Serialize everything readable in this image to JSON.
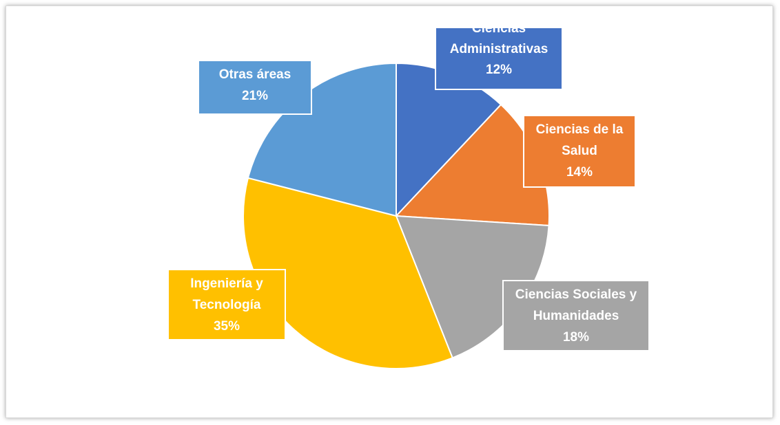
{
  "chart_data": {
    "type": "pie",
    "title": "",
    "start_angle_deg": 0,
    "direction": "clockwise",
    "slices": [
      {
        "label_lines": [
          "Ciencias",
          "Administrativas"
        ],
        "value": 12,
        "value_label": "12%",
        "color": "#4472c4"
      },
      {
        "label_lines": [
          "Ciencias de la",
          "Salud"
        ],
        "value": 14,
        "value_label": "14%",
        "color": "#ed7d31"
      },
      {
        "label_lines": [
          "Ciencias Sociales y",
          "Humanidades"
        ],
        "value": 18,
        "value_label": "18%",
        "color": "#a5a5a5"
      },
      {
        "label_lines": [
          "Ingeniería y",
          "Tecnología"
        ],
        "value": 35,
        "value_label": "35%",
        "color": "#ffc000"
      },
      {
        "label_lines": [
          "Otras áreas"
        ],
        "value": 21,
        "value_label": "21%",
        "color": "#5b9bd5"
      }
    ]
  }
}
